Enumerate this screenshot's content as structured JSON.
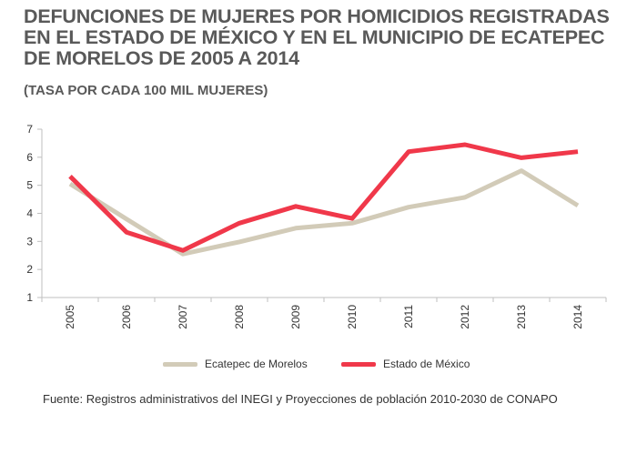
{
  "title": "DEFUNCIONES DE MUJERES POR HOMICIDIOS REGISTRADAS EN EL  ESTADO DE MÉXICO Y EN EL MUNICIPIO DE ECATEPEC DE MORELOS DE 2005 A 2014",
  "subtitle": "(TASA POR CADA 100 MIL MUJERES)",
  "source": "Fuente: Registros administrativos del INEGI y Proyecciones de población 2010-2030 de CONAPO",
  "chart_data": {
    "type": "line",
    "title": "DEFUNCIONES DE MUJERES POR HOMICIDIOS REGISTRADAS EN EL  ESTADO DE MÉXICO Y EN EL MUNICIPIO DE ECATEPEC DE MORELOS DE 2005 A 2014",
    "subtitle": "(TASA POR CADA 100 MIL MUJERES)",
    "xlabel": "",
    "ylabel": "",
    "categories": [
      "2005",
      "2006",
      "2007",
      "2008",
      "2009",
      "2010",
      "2011",
      "2012",
      "2013",
      "2014"
    ],
    "ylim": [
      1,
      7
    ],
    "yticks": [
      1,
      2,
      3,
      4,
      5,
      6,
      7
    ],
    "grid": false,
    "legend_position": "bottom",
    "series": [
      {
        "name": "Ecatepec de Morelos",
        "color": "#d2cbb8",
        "values": [
          5.05,
          3.8,
          2.55,
          2.98,
          3.47,
          3.65,
          4.22,
          4.57,
          5.52,
          4.28
        ]
      },
      {
        "name": "Estado de México",
        "color": "#f0384a",
        "values": [
          5.32,
          3.33,
          2.68,
          3.65,
          4.25,
          3.82,
          6.2,
          6.45,
          5.98,
          6.2
        ]
      }
    ]
  }
}
